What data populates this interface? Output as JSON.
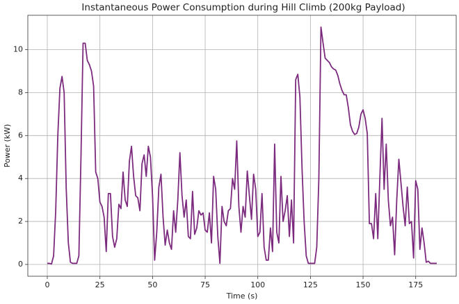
{
  "chart_data": {
    "type": "line",
    "title": "Instantaneous Power Consumption during Hill Climb (200kg Payload)",
    "x_label": "Time (s)",
    "y_label": "Power (kW)",
    "x": [
      0,
      1,
      2,
      3,
      4,
      5,
      6,
      7,
      8,
      9,
      10,
      11,
      12,
      13,
      14,
      15,
      16,
      17,
      18,
      19,
      20,
      21,
      22,
      23,
      24,
      25,
      26,
      27,
      28,
      29,
      30,
      31,
      32,
      33,
      34,
      35,
      36,
      37,
      38,
      39,
      40,
      41,
      42,
      43,
      44,
      45,
      46,
      47,
      48,
      49,
      50,
      51,
      52,
      53,
      54,
      55,
      56,
      57,
      58,
      59,
      60,
      61,
      62,
      63,
      64,
      65,
      66,
      67,
      68,
      69,
      70,
      71,
      72,
      73,
      74,
      75,
      76,
      77,
      78,
      79,
      80,
      81,
      82,
      83,
      84,
      85,
      86,
      87,
      88,
      89,
      90,
      91,
      92,
      93,
      94,
      95,
      96,
      97,
      98,
      99,
      100,
      101,
      102,
      103,
      104,
      105,
      106,
      107,
      108,
      109,
      110,
      111,
      112,
      113,
      114,
      115,
      116,
      117,
      118,
      119,
      120,
      121,
      122,
      123,
      124,
      125,
      126,
      127,
      128,
      129,
      130,
      131,
      132,
      133,
      134,
      135,
      136,
      137,
      138,
      139,
      140,
      141,
      142,
      143,
      144,
      145,
      146,
      147,
      148,
      149,
      150,
      151,
      152,
      153,
      154,
      155,
      156,
      157,
      158,
      159,
      160,
      161,
      162,
      163,
      164,
      165,
      166,
      167,
      168,
      169,
      170,
      171,
      172,
      173,
      174,
      175,
      176,
      177,
      178,
      179,
      180,
      181,
      182,
      183,
      184,
      185
    ],
    "series": [
      {
        "name": "Power",
        "color": "#7b2a7e",
        "values": [
          0.05,
          0.05,
          0.02,
          0.4,
          2.5,
          6,
          8.2,
          8.75,
          8,
          3.5,
          1,
          0.1,
          0.05,
          0.05,
          0.05,
          0.4,
          5,
          10.3,
          10.3,
          9.5,
          9.3,
          9,
          8.3,
          4.3,
          4,
          2.9,
          2.7,
          2.2,
          0.6,
          3.3,
          3.3,
          1.3,
          0.8,
          1.2,
          2.8,
          2.6,
          4.3,
          3,
          2.7,
          4.8,
          5.5,
          4.1,
          3.2,
          3.1,
          2.5,
          4.7,
          5.1,
          4.1,
          5.5,
          5,
          3.2,
          0.2,
          1.5,
          3.6,
          4.2,
          2.2,
          0.9,
          1.6,
          1,
          0.7,
          2.5,
          1.5,
          3,
          5.2,
          3.2,
          2.2,
          3,
          1.3,
          1.2,
          3.4,
          1.4,
          1.7,
          2.5,
          2.3,
          2.4,
          1.6,
          1.5,
          2.4,
          1,
          4.1,
          3.5,
          1.3,
          0.05,
          2.7,
          2,
          1.8,
          2.5,
          2.6,
          4,
          3.5,
          5.75,
          2.7,
          1.5,
          2.7,
          2.2,
          4.35,
          3.2,
          2.1,
          4.2,
          3.5,
          1.3,
          1.5,
          3.3,
          0.8,
          0.2,
          0.2,
          1.7,
          0.6,
          5.6,
          1.5,
          1,
          4.1,
          2,
          2.5,
          3.2,
          1.3,
          3,
          1,
          8.6,
          8.85,
          7.8,
          4.5,
          2,
          0.4,
          0.05,
          0.05,
          0.05,
          0.05,
          0.8,
          4,
          11.05,
          10.3,
          9.6,
          9.5,
          9.4,
          9.2,
          9.1,
          9.05,
          8.8,
          8.4,
          8.1,
          7.9,
          7.9,
          7.3,
          6.5,
          6.2,
          6.05,
          6.1,
          6.4,
          7,
          7.2,
          6.8,
          6.1,
          1.9,
          1.9,
          1.2,
          3.3,
          1.2,
          4.1,
          6.8,
          3.5,
          5.6,
          3,
          1.8,
          2.2,
          0.45,
          3,
          4.9,
          3.8,
          2.7,
          1.8,
          3.6,
          1.9,
          2,
          0.3,
          3.9,
          3.5,
          0.7,
          1.7,
          1,
          0.1,
          0.15,
          0.05,
          0.05,
          0.05,
          0.05
        ]
      }
    ],
    "xlim": [
      -9.25,
      194.25
    ],
    "ylim": [
      -0.55,
      11.6
    ],
    "xticks": [
      0,
      25,
      50,
      75,
      100,
      125,
      150,
      175
    ],
    "yticks": [
      0,
      2,
      4,
      6,
      8,
      10
    ],
    "grid": true
  }
}
